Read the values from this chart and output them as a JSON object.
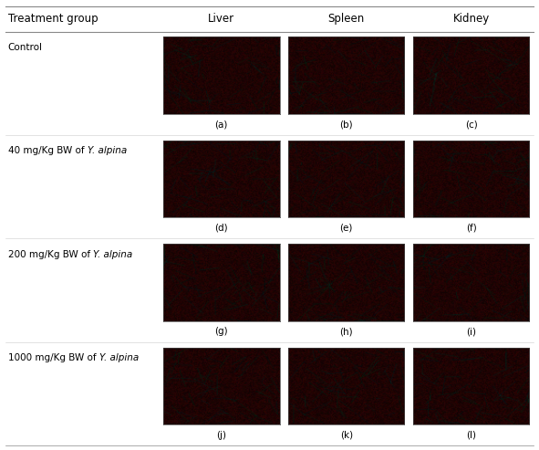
{
  "col_headers": [
    "Liver",
    "Spleen",
    "Kidney"
  ],
  "row_labels_normal_part": [
    "Control",
    "40 mg/Kg BW of ",
    "200 mg/Kg BW of ",
    "1000 mg/Kg BW of "
  ],
  "row_labels_italic_part": [
    "",
    "Y. alpina",
    "Y. alpina",
    "Y. alpina"
  ],
  "subcaptions": [
    [
      "(a)",
      "(b)",
      "(c)"
    ],
    [
      "(d)",
      "(e)",
      "(f)"
    ],
    [
      "(g)",
      "(h)",
      "(i)"
    ],
    [
      "(j)",
      "(k)",
      "(l)"
    ]
  ],
  "table_header": "Treatment group",
  "bg_color": "#ffffff",
  "text_color": "#000000",
  "caption_fontsize": 7.5,
  "header_fontsize": 8.5,
  "label_fontsize": 7.5
}
